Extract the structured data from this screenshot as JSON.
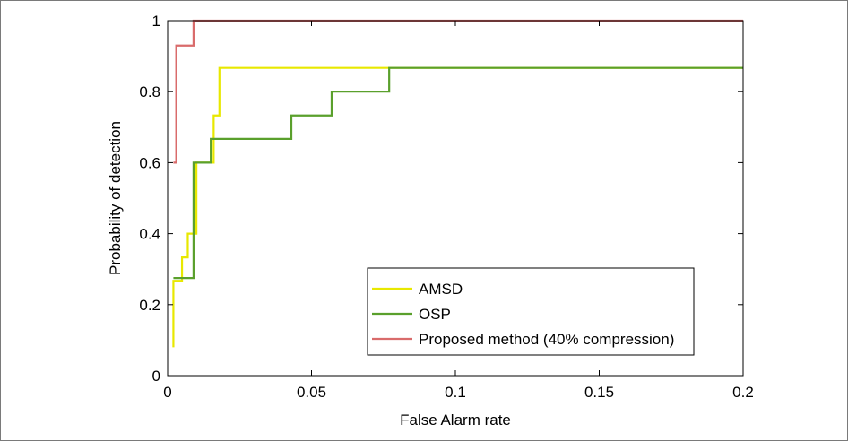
{
  "chart_data": {
    "type": "line",
    "title": "",
    "xlabel": "False Alarm rate",
    "ylabel": "Probability of detection",
    "xlim": [
      0,
      0.2
    ],
    "ylim": [
      0,
      1
    ],
    "xticks": [
      0,
      0.05,
      0.1,
      0.15,
      0.2
    ],
    "xtick_labels": [
      "0",
      "0.05",
      "0.1",
      "0.15",
      "0.2"
    ],
    "yticks": [
      0,
      0.2,
      0.4,
      0.6,
      0.8,
      1
    ],
    "ytick_labels": [
      "0",
      "0.2",
      "0.4",
      "0.6",
      "0.8",
      "1"
    ],
    "grid": false,
    "legend_position": "bottom-right",
    "series": [
      {
        "name": "AMSD",
        "color": "#e8e800",
        "step": true,
        "x": [
          0.002,
          0.002,
          0.005,
          0.007,
          0.01,
          0.016,
          0.018,
          0.021,
          0.2
        ],
        "y": [
          0.08,
          0.267,
          0.333,
          0.4,
          0.6,
          0.733,
          0.867,
          0.867,
          0.867
        ]
      },
      {
        "name": "OSP",
        "color": "#5aa02c",
        "step": true,
        "x": [
          0.002,
          0.009,
          0.015,
          0.043,
          0.057,
          0.077,
          0.2
        ],
        "y": [
          0.275,
          0.6,
          0.667,
          0.733,
          0.8,
          0.867,
          0.867
        ]
      },
      {
        "name": "Proposed method (40% compression)",
        "color": "#d96b6b",
        "step": true,
        "x": [
          0.002,
          0.003,
          0.009,
          0.2
        ],
        "y": [
          0.6,
          0.93,
          1.0,
          1.0
        ]
      }
    ]
  }
}
